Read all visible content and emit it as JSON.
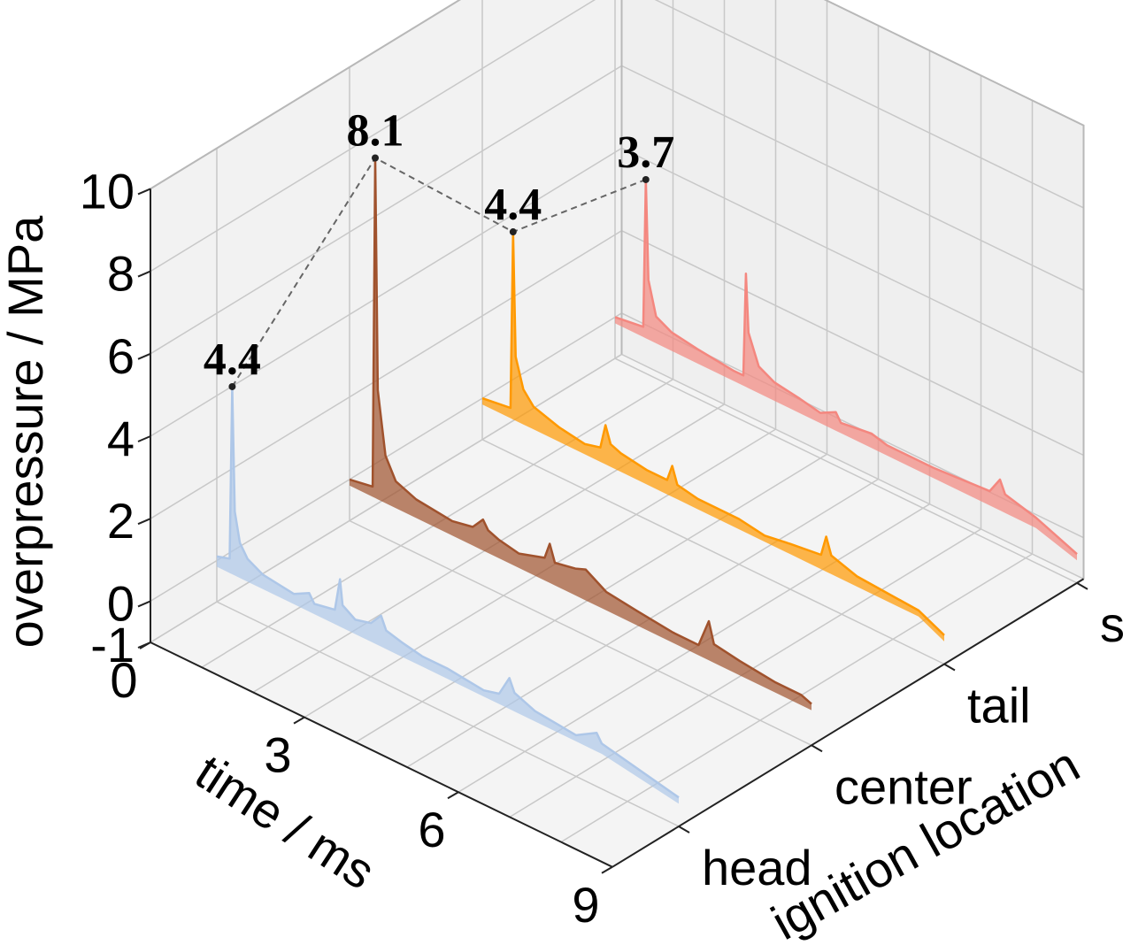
{
  "chart_data": {
    "type": "line",
    "projection": "3d-waterfall",
    "xlabel": "time / ms",
    "ylabel": "ignition location",
    "zlabel": "overpressure / MPa",
    "xlim": [
      0,
      9
    ],
    "zlim": [
      -1,
      10
    ],
    "x_ticks": [
      "0",
      "3",
      "6",
      "9"
    ],
    "z_ticks": [
      "-1",
      "0",
      "2",
      "4",
      "6",
      "8",
      "10"
    ],
    "categories": [
      "head",
      "center",
      "tail",
      "sphere"
    ],
    "grid": true,
    "series": [
      {
        "category": "head",
        "color": "#aec7e8",
        "peak_label": "4.4",
        "peak": {
          "x": 0.3,
          "y": 4.4
        },
        "points": [
          [
            0,
            0.1
          ],
          [
            0.25,
            0.2
          ],
          [
            0.3,
            4.4
          ],
          [
            0.35,
            1.4
          ],
          [
            0.45,
            0.7
          ],
          [
            0.6,
            0.4
          ],
          [
            0.9,
            0.2
          ],
          [
            1.5,
            0.1
          ],
          [
            1.8,
            0.3
          ],
          [
            1.9,
            0.1
          ],
          [
            2.3,
            0.2
          ],
          [
            2.4,
            1.0
          ],
          [
            2.45,
            0.4
          ],
          [
            2.7,
            0.2
          ],
          [
            3.0,
            0.3
          ],
          [
            3.2,
            0.6
          ],
          [
            3.3,
            0.3
          ],
          [
            3.6,
            0.2
          ],
          [
            4.0,
            0.1
          ],
          [
            4.5,
            0.1
          ],
          [
            5.2,
            0.0
          ],
          [
            5.5,
            0.1
          ],
          [
            5.7,
            0.6
          ],
          [
            5.8,
            0.3
          ],
          [
            6.2,
            0.1
          ],
          [
            7.0,
            0.0
          ],
          [
            7.4,
            0.3
          ],
          [
            7.5,
            0.1
          ],
          [
            9.0,
            -0.3
          ]
        ]
      },
      {
        "category": "center",
        "color": "#a0522d",
        "peak_label": "8.1",
        "peak": {
          "x": 0.5,
          "y": 8.1
        },
        "points": [
          [
            0,
            0.0
          ],
          [
            0.45,
            0.1
          ],
          [
            0.5,
            8.1
          ],
          [
            0.55,
            2.5
          ],
          [
            0.7,
            1.0
          ],
          [
            0.9,
            0.5
          ],
          [
            1.3,
            0.3
          ],
          [
            2.0,
            0.2
          ],
          [
            2.4,
            0.3
          ],
          [
            2.6,
            0.6
          ],
          [
            2.7,
            0.4
          ],
          [
            2.9,
            0.3
          ],
          [
            3.3,
            0.2
          ],
          [
            3.8,
            0.4
          ],
          [
            3.9,
            0.8
          ],
          [
            4.0,
            0.4
          ],
          [
            4.4,
            0.5
          ],
          [
            4.6,
            0.6
          ],
          [
            5.0,
            0.3
          ],
          [
            5.6,
            0.2
          ],
          [
            6.3,
            0.1
          ],
          [
            6.8,
            0.1
          ],
          [
            7.0,
            0.8
          ],
          [
            7.1,
            0.3
          ],
          [
            7.6,
            0.2
          ],
          [
            8.3,
            0.1
          ],
          [
            8.8,
            0.1
          ],
          [
            9.0,
            0.0
          ]
        ]
      },
      {
        "category": "tail",
        "color": "#ff9900",
        "peak_label": "4.4",
        "peak": {
          "x": 0.6,
          "y": 4.4
        },
        "points": [
          [
            0,
            0.0
          ],
          [
            0.55,
            0.1
          ],
          [
            0.6,
            4.4
          ],
          [
            0.65,
            1.4
          ],
          [
            0.8,
            0.7
          ],
          [
            1.0,
            0.4
          ],
          [
            1.5,
            0.2
          ],
          [
            2.0,
            0.1
          ],
          [
            2.3,
            0.2
          ],
          [
            2.4,
            0.8
          ],
          [
            2.5,
            0.4
          ],
          [
            2.7,
            0.3
          ],
          [
            3.2,
            0.2
          ],
          [
            3.6,
            0.2
          ],
          [
            3.7,
            0.6
          ],
          [
            3.8,
            0.2
          ],
          [
            4.2,
            0.1
          ],
          [
            5.0,
            0.1
          ],
          [
            5.5,
            0.0
          ],
          [
            6.0,
            0.1
          ],
          [
            6.6,
            0.2
          ],
          [
            6.7,
            0.7
          ],
          [
            6.8,
            0.3
          ],
          [
            7.3,
            0.1
          ],
          [
            8.5,
            0.0
          ],
          [
            9.0,
            -0.3
          ]
        ]
      },
      {
        "category": "sphere",
        "color": "#f4877f",
        "peak_label": "3.7",
        "peak": {
          "x": 0.6,
          "y": 3.7
        },
        "points": [
          [
            0,
            0.0
          ],
          [
            0.55,
            0.1
          ],
          [
            0.6,
            3.7
          ],
          [
            0.65,
            1.3
          ],
          [
            0.8,
            0.5
          ],
          [
            1.1,
            0.3
          ],
          [
            1.6,
            0.2
          ],
          [
            2.3,
            0.1
          ],
          [
            2.5,
            0.1
          ],
          [
            2.55,
            2.6
          ],
          [
            2.6,
            1.2
          ],
          [
            2.8,
            0.5
          ],
          [
            3.1,
            0.3
          ],
          [
            3.6,
            0.2
          ],
          [
            4.0,
            0.1
          ],
          [
            4.3,
            0.3
          ],
          [
            4.4,
            0.1
          ],
          [
            5.0,
            0.2
          ],
          [
            5.3,
            0.1
          ],
          [
            6.2,
            0.1
          ],
          [
            7.3,
            0.2
          ],
          [
            7.5,
            0.6
          ],
          [
            7.6,
            0.3
          ],
          [
            8.2,
            0.1
          ],
          [
            9.0,
            -0.3
          ]
        ]
      }
    ]
  }
}
